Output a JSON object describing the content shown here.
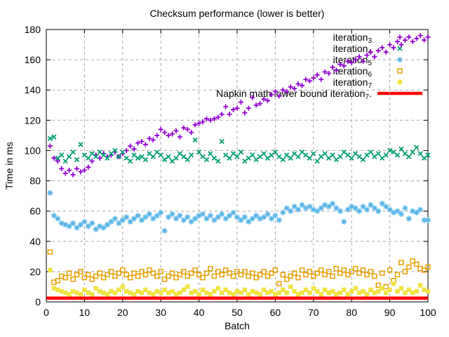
{
  "chart_data": {
    "type": "scatter",
    "title": "Checksum performance (lower is better)",
    "xlabel": "Batch",
    "ylabel": "Time in ms",
    "xlim": [
      0,
      100
    ],
    "ylim": [
      0,
      180
    ],
    "x_ticks": [
      0,
      10,
      20,
      30,
      40,
      50,
      60,
      70,
      80,
      90,
      100
    ],
    "y_ticks": [
      0,
      20,
      40,
      60,
      80,
      100,
      120,
      140,
      160,
      180
    ],
    "grid": true,
    "grid_color": "#a8a8a8",
    "legend_position": "top-right-inside",
    "legend": {
      "entries": [
        {
          "base": "iteration",
          "sub": "3",
          "marker": "plus"
        },
        {
          "base": "iteration",
          "sub": "4",
          "marker": "cross"
        },
        {
          "base": "iteration",
          "sub": "5",
          "marker": "asterisk"
        },
        {
          "base": "iteration",
          "sub": "6",
          "marker": "open-square"
        },
        {
          "base": "iteration",
          "sub": "7",
          "marker": "filled-square"
        },
        {
          "base": "Napkin math lower bound iteration",
          "sub": "7",
          "suffix": ".",
          "marker": "line"
        }
      ]
    },
    "series": [
      {
        "name": "iteration_3",
        "marker": "plus",
        "color": "#9400d3",
        "x_start": 1,
        "x_step": 1,
        "y": [
          103,
          95,
          93,
          88,
          85,
          87,
          84,
          88,
          86,
          87,
          89,
          93,
          97,
          95,
          98,
          96,
          97,
          99,
          96,
          98,
          100,
          103,
          101,
          105,
          106,
          104,
          108,
          107,
          110,
          114,
          112,
          110,
          111,
          113,
          109,
          115,
          114,
          112,
          117,
          118,
          119,
          121,
          120,
          121,
          122,
          124,
          129,
          124,
          127,
          128,
          132,
          125,
          128,
          135,
          130,
          131,
          134,
          133,
          137,
          139,
          136,
          140,
          139,
          142,
          141,
          144,
          143,
          147,
          146,
          148,
          150,
          147,
          152,
          151,
          155,
          153,
          157,
          156,
          159,
          158,
          160,
          162,
          159,
          163,
          165,
          162,
          166,
          168,
          165,
          170,
          168,
          172,
          170,
          173,
          175,
          172,
          174,
          176,
          173,
          175
        ]
      },
      {
        "name": "iteration_4",
        "marker": "cross",
        "color": "#009e73",
        "x_start": 1,
        "x_step": 1,
        "y": [
          108,
          109,
          95,
          97,
          93,
          96,
          99,
          94,
          104,
          97,
          95,
          98,
          96,
          99,
          97,
          95,
          98,
          100,
          96,
          99,
          95,
          93,
          97,
          95,
          96,
          94,
          98,
          96,
          99,
          97,
          94,
          96,
          93,
          95,
          98,
          96,
          94,
          97,
          107,
          99,
          96,
          94,
          98,
          95,
          93,
          106,
          97,
          95,
          98,
          96,
          99,
          93,
          95,
          97,
          94,
          96,
          98,
          95,
          97,
          99,
          96,
          94,
          97,
          95,
          98,
          96,
          99,
          97,
          95,
          98,
          93,
          96,
          98,
          95,
          97,
          94,
          96,
          99,
          97,
          95,
          98,
          96,
          94,
          97,
          99,
          96,
          98,
          95,
          97,
          100,
          99,
          97,
          101,
          98,
          96,
          99,
          102,
          98,
          95,
          97
        ]
      },
      {
        "name": "iteration_5",
        "marker": "asterisk",
        "color": "#56b4e9",
        "x_start": 1,
        "x_step": 1,
        "y": [
          72,
          57,
          55,
          52,
          51,
          50,
          52,
          49,
          51,
          53,
          50,
          52,
          48,
          50,
          49,
          51,
          53,
          55,
          52,
          54,
          56,
          53,
          55,
          57,
          54,
          56,
          58,
          55,
          57,
          59,
          47,
          56,
          58,
          55,
          57,
          54,
          56,
          53,
          55,
          57,
          58,
          55,
          57,
          54,
          56,
          58,
          55,
          57,
          59,
          56,
          54,
          56,
          53,
          55,
          57,
          55,
          56,
          58,
          55,
          57,
          54,
          59,
          62,
          60,
          63,
          61,
          64,
          62,
          63,
          61,
          60,
          62,
          64,
          63,
          65,
          62,
          60,
          53,
          61,
          63,
          62,
          60,
          63,
          61,
          64,
          62,
          60,
          65,
          63,
          61,
          59,
          60,
          58,
          62,
          55,
          60,
          59,
          61,
          54,
          54
        ]
      },
      {
        "name": "iteration_6",
        "marker": "open-square",
        "color": "#e69f00",
        "x_start": 1,
        "x_step": 1,
        "y": [
          33,
          13,
          14,
          17,
          16,
          19,
          15,
          18,
          20,
          16,
          18,
          15,
          17,
          19,
          16,
          18,
          20,
          17,
          19,
          21,
          18,
          16,
          19,
          17,
          20,
          18,
          21,
          19,
          17,
          20,
          15,
          17,
          19,
          16,
          18,
          20,
          17,
          19,
          21,
          18,
          16,
          19,
          22,
          17,
          20,
          18,
          21,
          19,
          17,
          20,
          18,
          20,
          17,
          19,
          16,
          18,
          20,
          17,
          19,
          21,
          12,
          18,
          15,
          17,
          19,
          16,
          21,
          18,
          20,
          17,
          19,
          21,
          18,
          20,
          17,
          22,
          19,
          21,
          18,
          20,
          22,
          19,
          21,
          18,
          20,
          17,
          11,
          19,
          10,
          21,
          14,
          18,
          26,
          20,
          23,
          27,
          25,
          22,
          21,
          23
        ]
      },
      {
        "name": "iteration_7",
        "marker": "filled-square",
        "color": "#f0e442",
        "x_start": 1,
        "x_step": 1,
        "y": [
          21,
          9,
          8,
          7,
          6,
          5,
          7,
          6,
          5,
          8,
          6,
          5,
          9,
          7,
          6,
          5,
          7,
          6,
          8,
          10,
          7,
          6,
          5,
          7,
          6,
          8,
          6,
          5,
          7,
          6,
          8,
          6,
          7,
          5,
          6,
          8,
          10,
          6,
          7,
          5,
          8,
          6,
          5,
          7,
          9,
          6,
          8,
          6,
          5,
          7,
          6,
          8,
          5,
          7,
          6,
          5,
          8,
          6,
          7,
          5,
          6,
          8,
          6,
          10,
          7,
          5,
          6,
          8,
          6,
          9,
          7,
          5,
          8,
          6,
          7,
          5,
          6,
          8,
          5,
          7,
          9,
          6,
          7,
          5,
          8,
          6,
          7,
          9,
          6,
          8,
          12,
          7,
          9,
          6,
          8,
          6,
          7,
          11,
          8,
          7
        ]
      },
      {
        "name": "Napkin math lower bound iteration_7",
        "type": "hline",
        "color": "#ff0000",
        "y_value": 2.5,
        "x_range": [
          0,
          100
        ],
        "line_width": 4.5
      }
    ]
  }
}
